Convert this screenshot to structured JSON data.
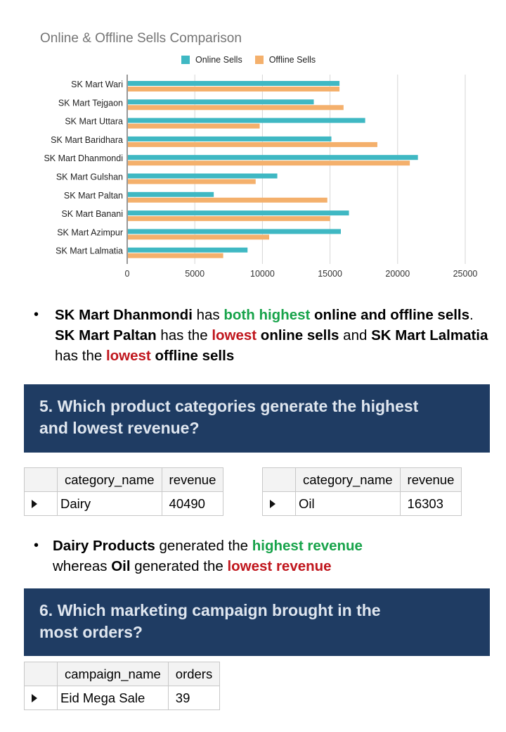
{
  "chart_data": {
    "type": "bar",
    "orientation": "horizontal",
    "title": "Online & Offline Sells Comparison",
    "categories": [
      "SK Mart Wari",
      "SK Mart Tejgaon",
      "SK Mart Uttara",
      "SK Mart Baridhara",
      "SK Mart Dhanmondi",
      "SK Mart Gulshan",
      "SK Mart Paltan",
      "SK Mart Banani",
      "SK Mart Azimpur",
      "SK Mart Lalmatia"
    ],
    "series": [
      {
        "name": "Online Sells",
        "color": "#3fb8c3",
        "values": [
          15700,
          13800,
          17600,
          15100,
          21500,
          11100,
          6400,
          16400,
          15800,
          8900
        ]
      },
      {
        "name": "Offline Sells",
        "color": "#f4b06c",
        "values": [
          15700,
          16000,
          9800,
          18500,
          20900,
          9500,
          14800,
          15000,
          10500,
          7100
        ]
      }
    ],
    "xlim": [
      0,
      25000
    ],
    "xticks": [
      0,
      5000,
      10000,
      15000,
      20000,
      25000
    ],
    "grid": true,
    "legend": "top"
  },
  "legend": {
    "online": "Online Sells",
    "offline": "Offline Sells"
  },
  "bullet1": {
    "p1": "SK Mart Dhanmondi",
    "p2": " has ",
    "p3": "both highest",
    "p4": " online and offline sells",
    "p5": ". ",
    "p6": "SK Mart Paltan",
    "p7": " has the ",
    "p8": "lowest",
    "p9": " online sells",
    "p10": " and ",
    "p11": "SK Mart Lalmatia",
    "p12": " has the ",
    "p13": "lowest",
    "p14": " offline sells"
  },
  "q5": {
    "title": "5. Which product categories generate the highest and lowest revenue?"
  },
  "table_high": {
    "headers": [
      "category_name",
      "revenue"
    ],
    "row": [
      "Dairy",
      "40490"
    ]
  },
  "table_low": {
    "headers": [
      "category_name",
      "revenue"
    ],
    "row": [
      "Oil",
      "16303"
    ]
  },
  "bullet2": {
    "p1": "Dairy Products",
    "p2": " generated the ",
    "p3": "highest revenue",
    "p4": " whereas ",
    "p5": "Oil",
    "p6": " generated the ",
    "p7": "lowest revenue"
  },
  "q6": {
    "title": "6. Which marketing campaign brought in the most orders?"
  },
  "table_campaign": {
    "headers": [
      "campaign_name",
      "orders"
    ],
    "row": [
      "Eid Mega Sale",
      "39"
    ]
  },
  "bullet_symbol": "•"
}
